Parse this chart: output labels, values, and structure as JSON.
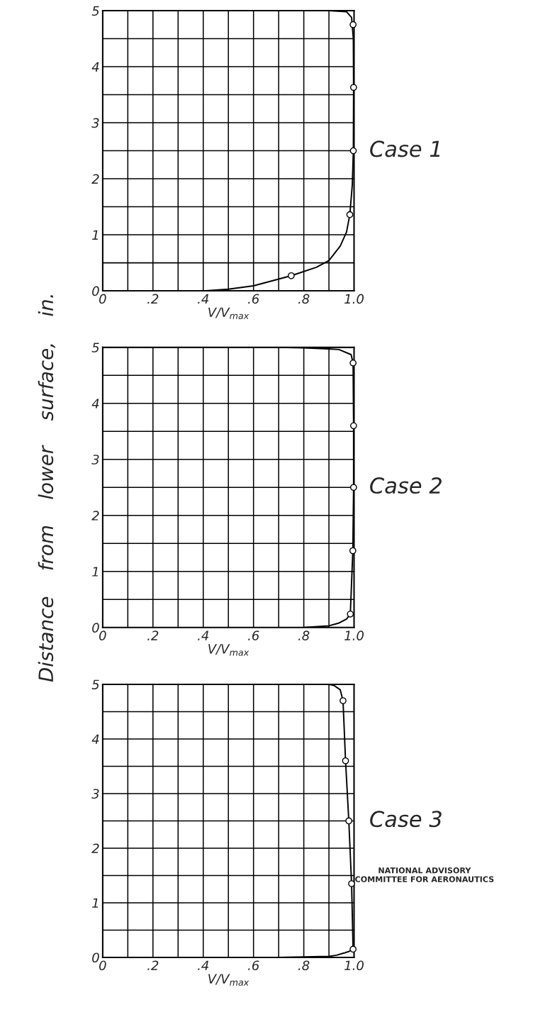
{
  "chart_data": [
    {
      "type": "line",
      "xlabel": "V/V$_{max}$",
      "xlim": [
        0,
        1.0
      ],
      "ylim": [
        0,
        5
      ],
      "xticks": [
        0,
        {
          "value": 0.1,
          "label": null
        },
        {
          "value": 0.2,
          "label": ".2"
        },
        {
          "value": 0.3,
          "label": null
        },
        {
          "value": 0.4,
          "label": ".4"
        },
        {
          "value": 0.5,
          "label": null
        },
        {
          "value": 0.6,
          "label": ".6"
        },
        {
          "value": 0.7,
          "label": null
        },
        {
          "value": 0.8,
          "label": ".8"
        },
        {
          "value": 0.9,
          "label": null
        },
        {
          "value": 1.0,
          "label": "1.0"
        }
      ],
      "yticks": [
        0,
        {
          "value": 0.5,
          "label": null
        },
        1,
        {
          "value": 1.5,
          "label": null
        },
        2,
        {
          "value": 2.5,
          "label": null
        },
        3,
        {
          "value": 3.5,
          "label": null
        },
        4,
        {
          "value": 4.5,
          "label": null
        },
        5
      ],
      "grid": true,
      "annotations": [
        "Case 1"
      ],
      "series": [
        {
          "color": "#000000",
          "marker": "none",
          "x": [
            0.4,
            0.5,
            0.6,
            0.75,
            0.85,
            0.9,
            0.945,
            0.97,
            0.983,
            0.993,
            0.997,
            0.998,
            0.997,
            0.99,
            0.97,
            0.9
          ],
          "values": [
            0,
            0.03,
            0.09,
            0.27,
            0.42,
            0.54,
            0.8,
            1.05,
            1.36,
            1.9,
            2.5,
            3.6,
            4.5,
            4.88,
            4.98,
            5
          ]
        },
        {
          "type": "scatter",
          "color": "#000000",
          "marker": "circle",
          "x": [
            0.75,
            0.983,
            0.997,
            0.998,
            0.996
          ],
          "values": [
            0.27,
            1.36,
            2.5,
            3.63,
            4.75
          ]
        }
      ]
    },
    {
      "type": "line",
      "xlabel": "V/V$_{max}$",
      "ylabel": "Distance    from    lower    surface,    in.",
      "xlim": [
        0,
        1.0
      ],
      "ylim": [
        0,
        5
      ],
      "xticks": [
        0,
        {
          "value": 0.1,
          "label": null
        },
        {
          "value": 0.2,
          "label": ".2"
        },
        {
          "value": 0.3,
          "label": null
        },
        {
          "value": 0.4,
          "label": ".4"
        },
        {
          "value": 0.5,
          "label": null
        },
        {
          "value": 0.6,
          "label": ".6"
        },
        {
          "value": 0.7,
          "label": null
        },
        {
          "value": 0.8,
          "label": ".8"
        },
        {
          "value": 0.9,
          "label": null
        },
        {
          "value": 1.0,
          "label": "1.0"
        }
      ],
      "yticks": [
        0,
        {
          "value": 0.5,
          "label": null
        },
        1,
        {
          "value": 1.5,
          "label": null
        },
        2,
        {
          "value": 2.5,
          "label": null
        },
        3,
        {
          "value": 3.5,
          "label": null
        },
        4,
        {
          "value": 4.5,
          "label": null
        },
        5
      ],
      "grid": true,
      "annotations": [
        "Case 2"
      ],
      "series": [
        {
          "color": "#000000",
          "marker": "none",
          "x": [
            0.8,
            0.9,
            0.94,
            0.97,
            0.985,
            0.995,
            0.998,
            0.998,
            0.996,
            0.988,
            0.94,
            0.9,
            0.8,
            0.7
          ],
          "values": [
            0,
            0.03,
            0.08,
            0.15,
            0.24,
            1.37,
            2.5,
            3.6,
            4.72,
            4.87,
            4.96,
            4.97,
            4.99,
            5
          ]
        },
        {
          "type": "scatter",
          "color": "#000000",
          "marker": "circle",
          "x": [
            0.985,
            0.995,
            0.998,
            0.998,
            0.996
          ],
          "values": [
            0.24,
            1.37,
            2.5,
            3.6,
            4.72
          ]
        }
      ]
    },
    {
      "type": "line",
      "xlabel": "V/V$_{max}$",
      "xlim": [
        0,
        1.0
      ],
      "ylim": [
        0,
        5
      ],
      "xticks": [
        0,
        {
          "value": 0.1,
          "label": null
        },
        {
          "value": 0.2,
          "label": ".2"
        },
        {
          "value": 0.3,
          "label": null
        },
        {
          "value": 0.4,
          "label": ".4"
        },
        {
          "value": 0.5,
          "label": null
        },
        {
          "value": 0.6,
          "label": ".6"
        },
        {
          "value": 0.7,
          "label": null
        },
        {
          "value": 0.8,
          "label": ".8"
        },
        {
          "value": 0.9,
          "label": null
        },
        {
          "value": 1.0,
          "label": "1.0"
        }
      ],
      "yticks": [
        0,
        {
          "value": 0.5,
          "label": null
        },
        1,
        {
          "value": 1.5,
          "label": null
        },
        2,
        {
          "value": 2.5,
          "label": null
        },
        3,
        {
          "value": 3.5,
          "label": null
        },
        4,
        {
          "value": 4.5,
          "label": null
        },
        5
      ],
      "grid": true,
      "annotations": [
        "Case 3",
        "NATIONAL ADVISORY\nCOMMITTEE FOR AERONAUTICS"
      ],
      "series": [
        {
          "color": "#000000",
          "marker": "none",
          "x": [
            0.7,
            0.9,
            0.93,
            0.96,
            0.98,
            0.996,
            0.99,
            0.979,
            0.966,
            0.956,
            0.945,
            0.92,
            0.9,
            0.7
          ],
          "values": [
            0,
            0.02,
            0.04,
            0.08,
            0.11,
            0.15,
            1.35,
            2.5,
            3.6,
            4.7,
            4.9,
            4.98,
            5,
            5
          ]
        },
        {
          "type": "scatter",
          "color": "#000000",
          "marker": "circle",
          "x": [
            0.996,
            0.99,
            0.979,
            0.966,
            0.956
          ],
          "values": [
            0.15,
            1.35,
            2.5,
            3.6,
            4.7
          ]
        }
      ]
    }
  ]
}
